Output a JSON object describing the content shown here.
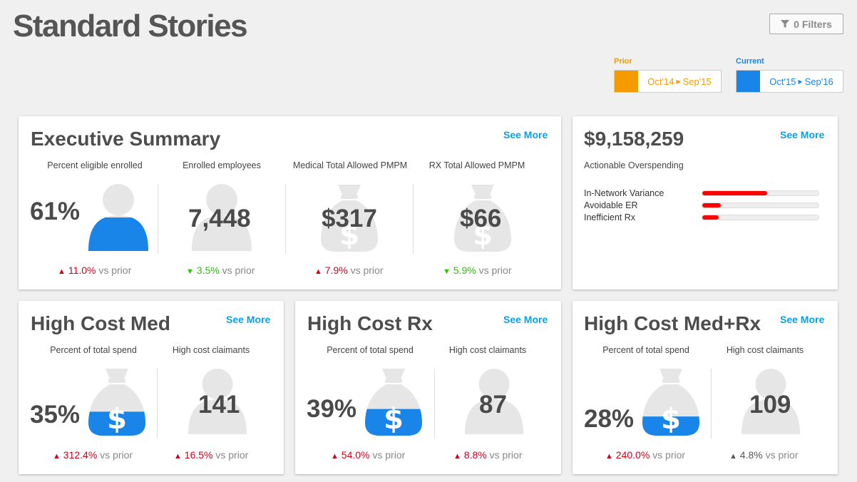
{
  "page": {
    "title": "Standard Stories"
  },
  "filters": {
    "label": "0 Filters",
    "icon": "filter-icon"
  },
  "periods": {
    "prior": {
      "label": "Prior",
      "start": "Oct'14",
      "end": "Sep'15",
      "color": "#f59b00"
    },
    "current": {
      "label": "Current",
      "start": "Oct'15",
      "end": "Sep'16",
      "color": "#1a85e8"
    }
  },
  "see_more": "See More",
  "vs_prior": "vs prior",
  "executive": {
    "title": "Executive Summary",
    "metrics": [
      {
        "label": "Percent eligible enrolled",
        "value": "61%",
        "delta": "11.0%",
        "direction": "up",
        "icon": "person-icon",
        "fill": 0.5
      },
      {
        "label": "Enrolled employees",
        "value": "7,448",
        "delta": "3.5%",
        "direction": "down",
        "icon": "person-icon"
      },
      {
        "label": "Medical Total Allowed PMPM",
        "value": "$317",
        "delta": "7.9%",
        "direction": "up",
        "icon": "money-bag-icon"
      },
      {
        "label": "RX Total Allowed PMPM",
        "value": "$66",
        "delta": "5.9%",
        "direction": "down",
        "icon": "money-bag-icon"
      }
    ]
  },
  "overspending": {
    "value": "$9,158,259",
    "label": "Actionable Overspending",
    "bars": [
      {
        "label": "In-Network Variance",
        "fraction": 0.56
      },
      {
        "label": "Avoidable ER",
        "fraction": 0.16
      },
      {
        "label": "Inefficient Rx",
        "fraction": 0.14
      }
    ]
  },
  "high_cost": [
    {
      "title": "High Cost Med",
      "spend": {
        "label": "Percent of total spend",
        "value": "35%",
        "delta": "312.4%",
        "direction": "up",
        "fill": 0.35
      },
      "claimants": {
        "label": "High cost claimants",
        "value": "141",
        "delta": "16.5%",
        "direction": "up"
      }
    },
    {
      "title": "High Cost Rx",
      "spend": {
        "label": "Percent of total spend",
        "value": "39%",
        "delta": "54.0%",
        "direction": "up",
        "fill": 0.39
      },
      "claimants": {
        "label": "High cost claimants",
        "value": "87",
        "delta": "8.8%",
        "direction": "up"
      }
    },
    {
      "title": "High Cost Med+Rx",
      "spend": {
        "label": "Percent of total spend",
        "value": "28%",
        "delta": "240.0%",
        "direction": "up",
        "fill": 0.28
      },
      "claimants": {
        "label": "High cost claimants",
        "value": "109",
        "delta": "4.8%",
        "direction": "neutral"
      }
    }
  ]
}
